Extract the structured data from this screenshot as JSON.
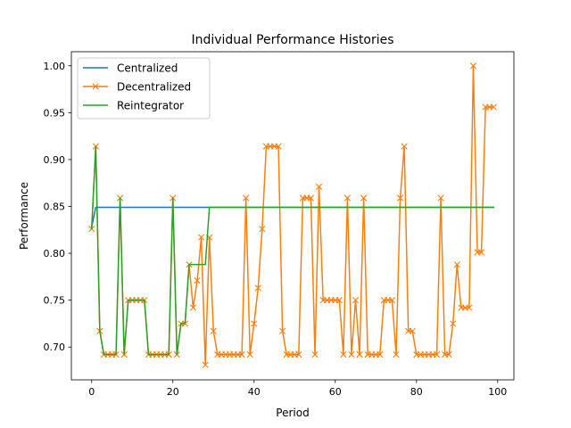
{
  "chart_data": {
    "type": "line",
    "title": "Individual Performance Histories",
    "xlabel": "Period",
    "ylabel": "Performance",
    "xlim": [
      -5,
      104
    ],
    "ylim": [
      0.665,
      1.015
    ],
    "xticks": [
      0,
      20,
      40,
      60,
      80,
      100
    ],
    "xtick_labels": [
      "0",
      "20",
      "40",
      "60",
      "80",
      "100"
    ],
    "yticks": [
      0.7,
      0.75,
      0.8,
      0.85,
      0.9,
      0.95,
      1.0
    ],
    "ytick_labels": [
      "0.70",
      "0.75",
      "0.80",
      "0.85",
      "0.90",
      "0.95",
      "1.00"
    ],
    "grid": false,
    "legend_position": "top-left",
    "series": [
      {
        "name": "Centralized",
        "color": "#1f77b4",
        "marker": "none",
        "x": [
          0,
          1,
          2,
          3,
          4,
          5,
          6,
          7,
          8,
          9,
          10,
          11,
          12,
          13,
          14,
          15,
          16,
          17,
          18,
          19,
          20,
          21,
          22,
          23,
          24,
          25,
          26,
          27,
          28,
          29,
          30,
          31,
          32,
          33,
          34,
          35,
          36,
          37,
          38,
          39,
          40,
          41,
          42,
          43,
          44,
          45,
          46,
          47,
          48,
          49,
          50,
          51,
          52,
          53,
          54,
          55,
          56,
          57,
          58,
          59,
          60,
          61,
          62,
          63,
          64,
          65,
          66,
          67,
          68,
          69,
          70,
          71,
          72,
          73,
          74,
          75,
          76,
          77,
          78,
          79,
          80,
          81,
          82,
          83,
          84,
          85,
          86,
          87,
          88,
          89,
          90,
          91,
          92,
          93,
          94,
          95,
          96,
          97,
          98,
          99
        ],
        "values": [
          0.828,
          0.849,
          0.849,
          0.849,
          0.849,
          0.849,
          0.849,
          0.849,
          0.849,
          0.849,
          0.849,
          0.849,
          0.849,
          0.849,
          0.849,
          0.849,
          0.849,
          0.849,
          0.849,
          0.849,
          0.849,
          0.849,
          0.849,
          0.849,
          0.849,
          0.849,
          0.849,
          0.849,
          0.849,
          0.849,
          0.849,
          0.849,
          0.849,
          0.849,
          0.849,
          0.849,
          0.849,
          0.849,
          0.849,
          0.849,
          0.849,
          0.849,
          0.849,
          0.849,
          0.849,
          0.849,
          0.849,
          0.849,
          0.849,
          0.849,
          0.849,
          0.849,
          0.849,
          0.849,
          0.849,
          0.849,
          0.849,
          0.849,
          0.849,
          0.849,
          0.849,
          0.849,
          0.849,
          0.849,
          0.849,
          0.849,
          0.849,
          0.849,
          0.849,
          0.849,
          0.849,
          0.849,
          0.849,
          0.849,
          0.849,
          0.849,
          0.849,
          0.849,
          0.849,
          0.849,
          0.849,
          0.849,
          0.849,
          0.849,
          0.849,
          0.849,
          0.849,
          0.849,
          0.849,
          0.849,
          0.849,
          0.849,
          0.849,
          0.849,
          0.849,
          0.849,
          0.849,
          0.849,
          0.849,
          0.849
        ]
      },
      {
        "name": "Decentralized",
        "color": "#ff7f0e",
        "marker": "x",
        "x": [
          0,
          1,
          2,
          3,
          4,
          5,
          6,
          7,
          8,
          9,
          10,
          11,
          12,
          13,
          14,
          15,
          16,
          17,
          18,
          19,
          20,
          21,
          22,
          23,
          24,
          25,
          26,
          27,
          28,
          29,
          30,
          31,
          32,
          33,
          34,
          35,
          36,
          37,
          38,
          39,
          40,
          41,
          42,
          43,
          44,
          45,
          46,
          47,
          48,
          49,
          50,
          51,
          52,
          53,
          54,
          55,
          56,
          57,
          58,
          59,
          60,
          61,
          62,
          63,
          64,
          65,
          66,
          67,
          68,
          69,
          70,
          71,
          72,
          73,
          74,
          75,
          76,
          77,
          78,
          79,
          80,
          81,
          82,
          83,
          84,
          85,
          86,
          87,
          88,
          89,
          90,
          91,
          92,
          93,
          94,
          95,
          96,
          97,
          98,
          99
        ],
        "values": [
          0.826,
          0.914,
          0.717,
          0.692,
          0.692,
          0.692,
          0.692,
          0.859,
          0.692,
          0.75,
          0.75,
          0.75,
          0.75,
          0.75,
          0.692,
          0.692,
          0.692,
          0.692,
          0.692,
          0.692,
          0.859,
          0.692,
          0.725,
          0.725,
          0.788,
          0.742,
          0.771,
          0.817,
          0.681,
          0.817,
          0.717,
          0.692,
          0.692,
          0.692,
          0.692,
          0.692,
          0.692,
          0.692,
          0.859,
          0.692,
          0.725,
          0.763,
          0.826,
          0.914,
          0.914,
          0.914,
          0.914,
          0.717,
          0.692,
          0.692,
          0.692,
          0.692,
          0.859,
          0.859,
          0.859,
          0.692,
          0.871,
          0.75,
          0.75,
          0.75,
          0.75,
          0.75,
          0.692,
          0.859,
          0.692,
          0.75,
          0.692,
          0.859,
          0.692,
          0.692,
          0.692,
          0.692,
          0.75,
          0.75,
          0.75,
          0.692,
          0.859,
          0.914,
          0.717,
          0.717,
          0.692,
          0.692,
          0.692,
          0.692,
          0.692,
          0.692,
          0.859,
          0.692,
          0.692,
          0.725,
          0.788,
          0.742,
          0.742,
          0.742,
          1.0,
          0.801,
          0.801,
          0.956,
          0.956,
          0.956
        ]
      },
      {
        "name": "Reintegrator",
        "color": "#2ca02c",
        "marker": "none",
        "x": [
          0,
          1,
          2,
          3,
          4,
          5,
          6,
          7,
          8,
          9,
          10,
          11,
          12,
          13,
          14,
          15,
          16,
          17,
          18,
          19,
          20,
          21,
          22,
          23,
          24,
          25,
          26,
          27,
          28,
          29,
          30,
          31,
          32,
          33,
          34,
          35,
          36,
          37,
          38,
          39,
          40,
          41,
          42,
          43,
          44,
          45,
          46,
          47,
          48,
          49,
          50,
          51,
          52,
          53,
          54,
          55,
          56,
          57,
          58,
          59,
          60,
          61,
          62,
          63,
          64,
          65,
          66,
          67,
          68,
          69,
          70,
          71,
          72,
          73,
          74,
          75,
          76,
          77,
          78,
          79,
          80,
          81,
          82,
          83,
          84,
          85,
          86,
          87,
          88,
          89,
          90,
          91,
          92,
          93,
          94,
          95,
          96,
          97,
          98,
          99
        ],
        "values": [
          0.826,
          0.914,
          0.717,
          0.692,
          0.692,
          0.692,
          0.692,
          0.859,
          0.692,
          0.75,
          0.75,
          0.75,
          0.75,
          0.75,
          0.692,
          0.692,
          0.692,
          0.692,
          0.692,
          0.692,
          0.859,
          0.692,
          0.725,
          0.725,
          0.788,
          0.788,
          0.788,
          0.788,
          0.788,
          0.849,
          0.849,
          0.849,
          0.849,
          0.849,
          0.849,
          0.849,
          0.849,
          0.849,
          0.849,
          0.849,
          0.849,
          0.849,
          0.849,
          0.849,
          0.849,
          0.849,
          0.849,
          0.849,
          0.849,
          0.849,
          0.849,
          0.849,
          0.849,
          0.849,
          0.849,
          0.849,
          0.849,
          0.849,
          0.849,
          0.849,
          0.849,
          0.849,
          0.849,
          0.849,
          0.849,
          0.849,
          0.849,
          0.849,
          0.849,
          0.849,
          0.849,
          0.849,
          0.849,
          0.849,
          0.849,
          0.849,
          0.849,
          0.849,
          0.849,
          0.849,
          0.849,
          0.849,
          0.849,
          0.849,
          0.849,
          0.849,
          0.849,
          0.849,
          0.849,
          0.849,
          0.849,
          0.849,
          0.849,
          0.849,
          0.849,
          0.849,
          0.849,
          0.849,
          0.849,
          0.849
        ]
      }
    ]
  }
}
